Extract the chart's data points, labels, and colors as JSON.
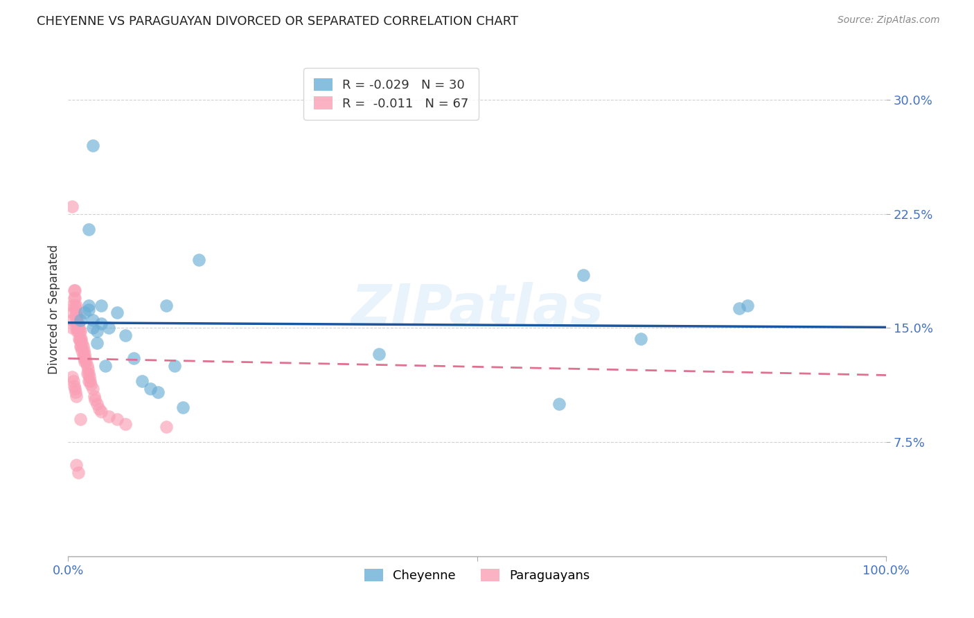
{
  "title": "CHEYENNE VS PARAGUAYAN DIVORCED OR SEPARATED CORRELATION CHART",
  "source": "Source: ZipAtlas.com",
  "ylabel": "Divorced or Separated",
  "ytick_labels": [
    "7.5%",
    "15.0%",
    "22.5%",
    "30.0%"
  ],
  "ytick_values": [
    0.075,
    0.15,
    0.225,
    0.3
  ],
  "xlim": [
    0.0,
    1.0
  ],
  "ylim": [
    0.0,
    0.325
  ],
  "cheyenne_color": "#6baed6",
  "paraguayan_color": "#fa9fb5",
  "cheyenne_R": -0.029,
  "cheyenne_N": 30,
  "paraguayan_R": -0.011,
  "paraguayan_N": 67,
  "cheyenne_x": [
    0.015,
    0.02,
    0.025,
    0.025,
    0.03,
    0.03,
    0.035,
    0.035,
    0.04,
    0.04,
    0.05,
    0.06,
    0.07,
    0.08,
    0.09,
    0.1,
    0.11,
    0.12,
    0.13,
    0.14,
    0.16,
    0.38,
    0.6,
    0.63,
    0.7,
    0.82,
    0.83,
    0.025,
    0.03,
    0.045
  ],
  "cheyenne_y": [
    0.155,
    0.16,
    0.162,
    0.165,
    0.155,
    0.15,
    0.14,
    0.148,
    0.153,
    0.165,
    0.15,
    0.16,
    0.145,
    0.13,
    0.115,
    0.11,
    0.108,
    0.165,
    0.125,
    0.098,
    0.195,
    0.133,
    0.1,
    0.185,
    0.143,
    0.163,
    0.165,
    0.215,
    0.27,
    0.125
  ],
  "paraguayan_x": [
    0.005,
    0.005,
    0.005,
    0.005,
    0.005,
    0.007,
    0.007,
    0.008,
    0.008,
    0.008,
    0.009,
    0.009,
    0.01,
    0.01,
    0.01,
    0.01,
    0.011,
    0.011,
    0.011,
    0.012,
    0.012,
    0.013,
    0.013,
    0.014,
    0.014,
    0.015,
    0.015,
    0.015,
    0.016,
    0.016,
    0.017,
    0.017,
    0.018,
    0.018,
    0.019,
    0.019,
    0.02,
    0.02,
    0.021,
    0.022,
    0.023,
    0.023,
    0.024,
    0.025,
    0.025,
    0.026,
    0.027,
    0.028,
    0.03,
    0.032,
    0.033,
    0.035,
    0.038,
    0.04,
    0.05,
    0.06,
    0.07,
    0.12,
    0.005,
    0.006,
    0.007,
    0.008,
    0.009,
    0.01,
    0.01,
    0.012,
    0.015
  ],
  "paraguayan_y": [
    0.23,
    0.165,
    0.16,
    0.155,
    0.15,
    0.175,
    0.17,
    0.175,
    0.17,
    0.165,
    0.163,
    0.158,
    0.165,
    0.16,
    0.155,
    0.15,
    0.158,
    0.153,
    0.148,
    0.153,
    0.148,
    0.15,
    0.143,
    0.148,
    0.142,
    0.148,
    0.143,
    0.138,
    0.143,
    0.138,
    0.14,
    0.135,
    0.138,
    0.132,
    0.135,
    0.13,
    0.133,
    0.128,
    0.13,
    0.128,
    0.125,
    0.12,
    0.123,
    0.12,
    0.115,
    0.118,
    0.115,
    0.113,
    0.11,
    0.105,
    0.103,
    0.1,
    0.097,
    0.095,
    0.092,
    0.09,
    0.087,
    0.085,
    0.118,
    0.115,
    0.112,
    0.11,
    0.108,
    0.105,
    0.06,
    0.055,
    0.09
  ],
  "cheyenne_trend_x": [
    0.0,
    1.0
  ],
  "cheyenne_trend_y": [
    0.1535,
    0.1505
  ],
  "paraguayan_trend_x": [
    0.0,
    1.0
  ],
  "paraguayan_trend_y": [
    0.13,
    0.119
  ],
  "watermark": "ZIPatlas",
  "background_color": "#ffffff",
  "grid_color": "#cccccc"
}
